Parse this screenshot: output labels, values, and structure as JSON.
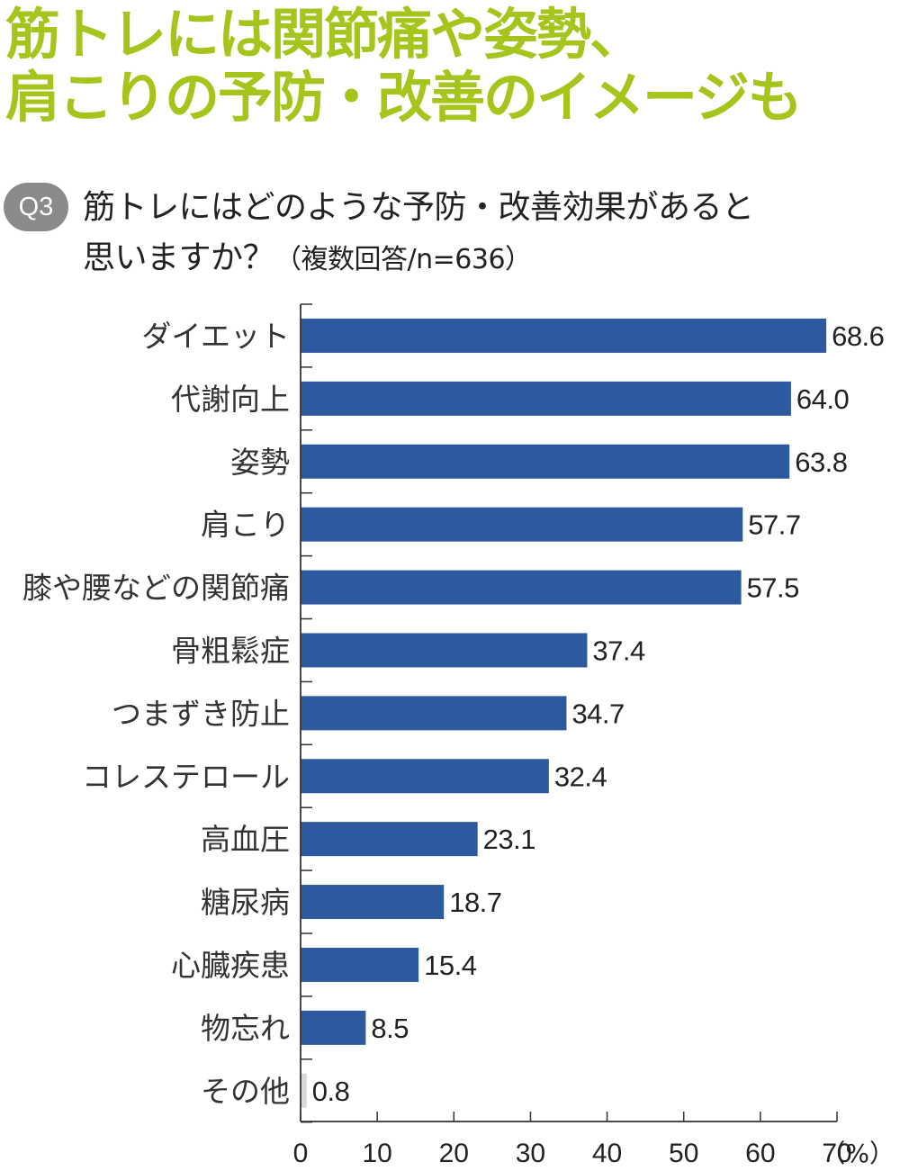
{
  "headline": {
    "line1": "筋トレには関節痛や姿勢、",
    "line2": "肩こりの予防・改善のイメージも"
  },
  "question": {
    "badge": "Q3",
    "line1": "筋トレにはどのような予防・改善効果があると",
    "line2": "思いますか？",
    "note": "（複数回答/n=636）"
  },
  "colors": {
    "headline": "#a6c51c",
    "badge": "#8a8a8a",
    "bar": "#2d5a9e",
    "other_bar": "#d8d8d8",
    "axis": "#333333"
  },
  "chart_data": {
    "type": "bar",
    "orientation": "horizontal",
    "categories": [
      "ダイエット",
      "代謝向上",
      "姿勢",
      "肩こり",
      "膝や腰などの関節痛",
      "骨粗鬆症",
      "つまずき防止",
      "コレステロール",
      "高血圧",
      "糖尿病",
      "心臓疾患",
      "物忘れ",
      "その他"
    ],
    "values": [
      68.6,
      64.0,
      63.8,
      57.7,
      57.5,
      37.4,
      34.7,
      32.4,
      23.1,
      18.7,
      15.4,
      8.5,
      0.8
    ],
    "value_labels": [
      "68.6",
      "64.0",
      "63.8",
      "57.7",
      "57.5",
      "37.4",
      "34.7",
      "32.4",
      "23.1",
      "18.7",
      "15.4",
      "8.5",
      "0.8"
    ],
    "xlim": [
      0,
      70
    ],
    "ticks": [
      "0",
      "10",
      "20",
      "30",
      "40",
      "50",
      "60",
      "70"
    ],
    "unit": "（%）",
    "grid": false
  }
}
